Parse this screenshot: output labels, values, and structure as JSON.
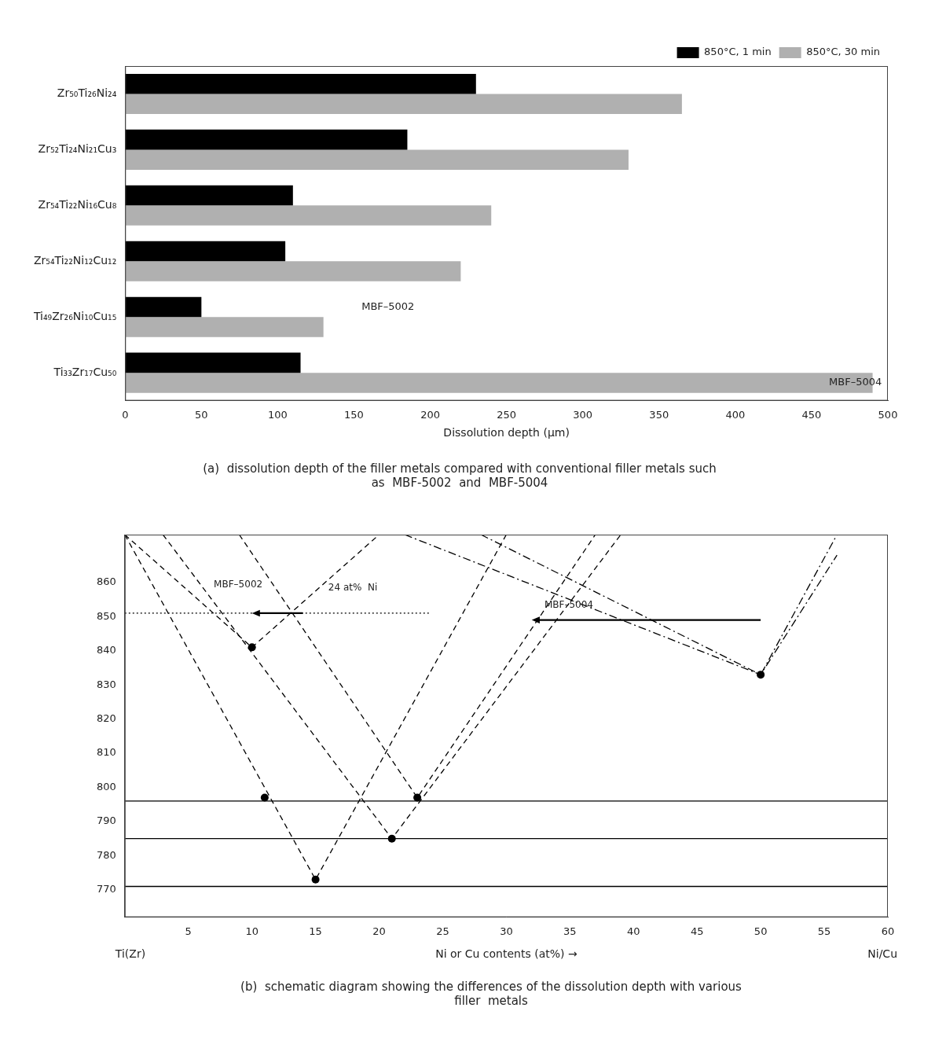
{
  "chart_data": [
    {
      "type": "bar",
      "orientation": "horizontal",
      "title": [
        "(a)  dissolution depth of the filler metals compared with conventional filler metals such",
        "as  MBF-5002  and  MBF-5004"
      ],
      "categories": [
        "Zr₅₀Ti₂₆Ni₂₄",
        "Zr₅₂Ti₂₄Ni₂₁Cu₃",
        "Zr₅₄Ti₂₂Ni₁₆Cu₈",
        "Zr₅₄Ti₂₂Ni₁₂Cu₁₂",
        "Ti₄₉Zr₂₆Ni₁₀Cu₁₅",
        "Ti₃₃Zr₁₇Cu₅₀"
      ],
      "series": [
        {
          "name": "850°C, 1 min",
          "color": "#000000",
          "values": [
            230,
            185,
            110,
            105,
            50,
            115
          ]
        },
        {
          "name": "850°C, 30 min",
          "color": "#b0b0b0",
          "values": [
            365,
            330,
            240,
            220,
            130,
            490
          ]
        }
      ],
      "xlabel": "Dissolution depth (μm)",
      "xlim": [
        0,
        500
      ],
      "xticks": [
        0,
        50,
        100,
        150,
        200,
        250,
        300,
        350,
        400,
        450,
        500
      ],
      "grid": false,
      "legend": "upper right",
      "annotations": [
        {
          "text": "MBF–5002",
          "x": 155,
          "category": "Ti₄₉Zr₂₆Ni₁₀Cu₁₅",
          "series": "850°C, 1 min"
        },
        {
          "text": "MBF–5004",
          "x": 496,
          "category": "Ti₃₃Zr₁₇Cu₅₀",
          "series": "850°C, 30 min"
        }
      ]
    },
    {
      "type": "line",
      "title": [
        "(b)  schematic diagram showing the differences of the dissolution depth with various",
        "filler  metals"
      ],
      "xlabel": "Ni or Cu contents (at%) →",
      "xlim": [
        0,
        60
      ],
      "xticks": [
        5,
        10,
        15,
        20,
        25,
        30,
        35,
        40,
        45,
        50,
        55,
        60
      ],
      "ylim": [
        762,
        874
      ],
      "yticks": [
        770,
        780,
        790,
        800,
        810,
        820,
        830,
        840,
        850,
        860
      ],
      "grid": false,
      "series": [
        {
          "color": "#000000",
          "line_style": "solid",
          "marker": "none",
          "x": [
            0,
            60
          ],
          "values": [
            771,
            771
          ]
        },
        {
          "color": "#000000",
          "line_style": "solid",
          "marker": "none",
          "x": [
            0,
            60
          ],
          "values": [
            785,
            785
          ]
        },
        {
          "color": "#000000",
          "line_style": "solid",
          "marker": "none",
          "x": [
            0,
            60
          ],
          "values": [
            796,
            796
          ]
        },
        {
          "color": "#000000",
          "line_style": "dashed",
          "marker": "none",
          "x": [
            0,
            10,
            20
          ],
          "values": [
            874,
            841,
            874
          ]
        },
        {
          "color": "#000000",
          "line_style": "dashed",
          "marker": "none",
          "x": [
            0,
            15,
            30
          ],
          "values": [
            874,
            773,
            874
          ]
        },
        {
          "color": "#000000",
          "line_style": "dashed",
          "marker": "none",
          "x": [
            3,
            21,
            39
          ],
          "values": [
            874,
            785,
            874
          ]
        },
        {
          "color": "#000000",
          "line_style": "dashed",
          "marker": "none",
          "x": [
            9,
            23,
            37
          ],
          "values": [
            874,
            797,
            874
          ]
        },
        {
          "color": "#000000",
          "line_style": "dashdot",
          "marker": "none",
          "x": [
            22,
            50,
            56
          ],
          "values": [
            874,
            833,
            868
          ]
        },
        {
          "color": "#000000",
          "line_style": "dashdot",
          "marker": "none",
          "x": [
            28,
            50,
            56
          ],
          "values": [
            874,
            833,
            874
          ]
        },
        {
          "color": "#000000",
          "line_style": "none",
          "marker": "circle",
          "x": [
            10,
            11,
            15,
            21,
            23,
            50
          ],
          "values": [
            841,
            797,
            773,
            785,
            797,
            833
          ]
        },
        {
          "color": "#000000",
          "line_style": "dotted",
          "marker": "none",
          "x": [
            0,
            24
          ],
          "values": [
            851,
            851
          ]
        }
      ],
      "arrows": [
        {
          "color": "#000000",
          "x": [
            14,
            10
          ],
          "y": [
            851,
            851
          ]
        },
        {
          "color": "#000000",
          "x": [
            50,
            32
          ],
          "y": [
            849,
            849
          ]
        }
      ],
      "annotations": [
        {
          "text": "MBF–5002",
          "x": 7,
          "y": 858
        },
        {
          "text": "24 at%  Ni",
          "x": 16,
          "y": 857
        },
        {
          "text": "MBF–5004",
          "x": 33,
          "y": 852
        }
      ],
      "axis_end_labels": [
        "Ti(Zr)",
        "Ni/Cu"
      ]
    }
  ]
}
